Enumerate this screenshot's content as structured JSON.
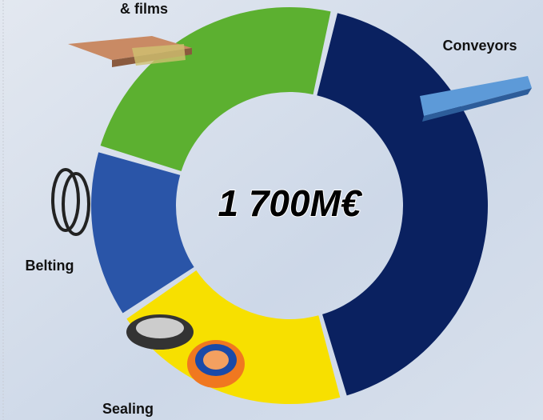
{
  "chart_data": {
    "type": "donut",
    "categories": [
      "Conveyors",
      "Sealing",
      "Belting",
      "& films"
    ],
    "values": [
      42,
      20,
      14,
      24
    ],
    "colors": [
      "#0a2160",
      "#f7e000",
      "#2a55a8",
      "#5cb030"
    ],
    "center_label": "1 700M€"
  }
}
